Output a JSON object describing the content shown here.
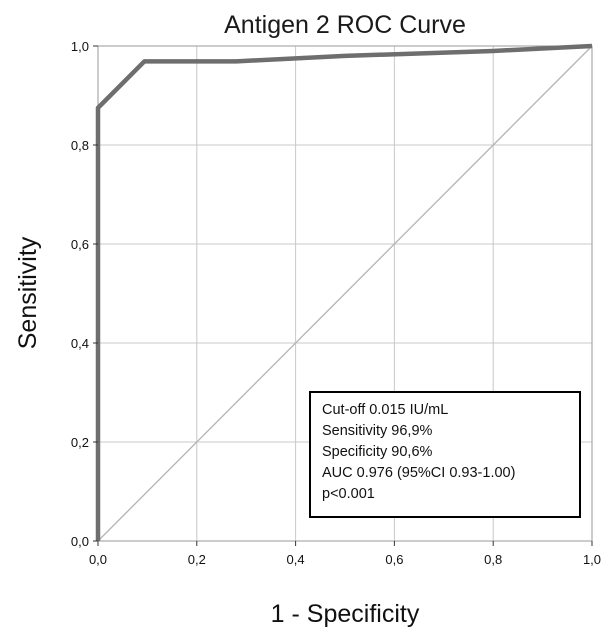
{
  "chart_data": {
    "type": "line",
    "title": "Antigen 2 ROC Curve",
    "xlabel": "1 - Specificity",
    "ylabel": "Sensitivity",
    "xlim": [
      0,
      1
    ],
    "ylim": [
      0,
      1
    ],
    "grid": true,
    "x_ticks": [
      0,
      0.2,
      0.4,
      0.6,
      0.8,
      1.0
    ],
    "y_ticks": [
      0,
      0.2,
      0.4,
      0.6,
      0.8,
      1.0
    ],
    "x_tick_labels": [
      "0,0",
      "0,2",
      "0,4",
      "0,6",
      "0,8",
      "1,0"
    ],
    "y_tick_labels": [
      "0,0",
      "0,2",
      "0,4",
      "0,6",
      "0,8",
      "1,0"
    ],
    "series": [
      {
        "color": "#6e6e6e",
        "x": [
          0,
          0,
          0.094,
          0.28,
          0.5,
          0.8,
          1.0
        ],
        "y": [
          0,
          0.875,
          0.969,
          0.969,
          0.98,
          0.99,
          1.0
        ]
      },
      {
        "color": "#b4b4b4",
        "x": [
          0,
          1
        ],
        "y": [
          0,
          1
        ]
      }
    ],
    "annotations": [
      "Cut-off 0.015 IU/mL",
      "Sensitivity 96,9%",
      "Specificity 90,6%",
      "AUC 0.976 (95%CI 0.93-1.00)",
      "p<0.001"
    ],
    "annotation_placement": "bottom-right"
  }
}
